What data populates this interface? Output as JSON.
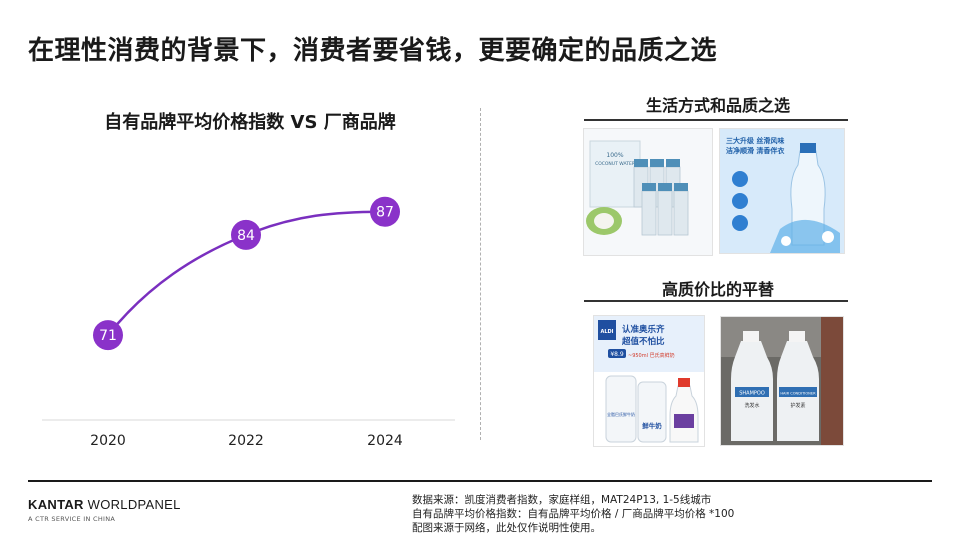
{
  "slide": {
    "title": "在理性消费的背景下，消费者要省钱，更要确定的品质之选"
  },
  "chart_data": {
    "type": "line",
    "title": "自有品牌平均价格指数 VS 厂商品牌",
    "categories": [
      "2020",
      "2022",
      "2024"
    ],
    "values": [
      71,
      84,
      87
    ],
    "data_labels": [
      "71",
      "84",
      "87"
    ],
    "ylim": [
      60,
      95
    ],
    "grid": false,
    "line_color": "#7a2fbf",
    "marker_color": "#8a32c9"
  },
  "right": {
    "section1_title": "生活方式和品质之选",
    "section2_title": "高质价比的平替",
    "photo1": {
      "text1": "100%",
      "text2": "COCONUT WATER"
    },
    "photo2": {
      "line1": "三大升级  丝滑风味",
      "line2": "洁净顺滑  清香伴衣"
    },
    "photo3": {
      "banner1": "认准奥乐齐",
      "banner2": "超值不怕比",
      "price": "¥8.9",
      "volume": "~950ml 巴氏高鲜奶",
      "brand": "ALDI",
      "milk": "鲜牛奶",
      "bottle_text": "全脂巴氏鲜牛奶"
    },
    "photo4": {
      "left_label": "SHAMPOO",
      "left_cn": "洗发水",
      "right_label": "HAIR CONDITIONER",
      "right_cn": "护发素"
    }
  },
  "footer": {
    "brand_bold": "KANTAR",
    "brand_rest": " WORLDPANEL",
    "brand_sub": "A CTR SERVICE IN CHINA",
    "notes": [
      "数据来源：凯度消费者指数，家庭样组，MAT24P13, 1-5线城市",
      "自有品牌平均价格指数：自有品牌平均价格 / 厂商品牌平均价格 *100",
      "配图来源于网络，此处仅作说明性使用。"
    ]
  }
}
